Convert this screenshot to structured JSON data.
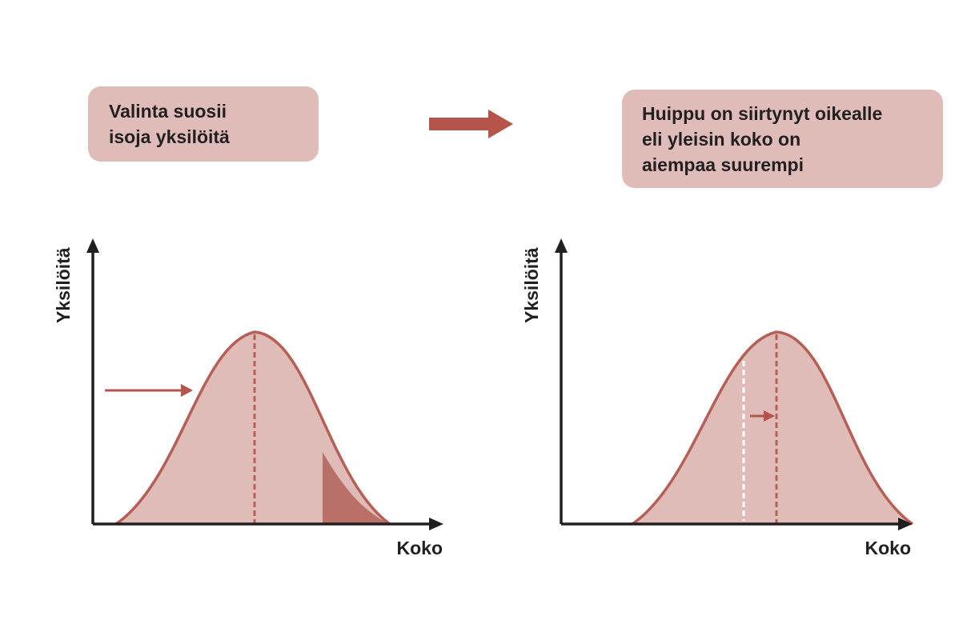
{
  "colors": {
    "curve_fill": "#dfbcb8",
    "curve_stroke": "#b65f56",
    "selected_tail": "#b87068",
    "arrow": "#b5544b",
    "axis": "#231f20",
    "callout_bg": "#dfbcb8"
  },
  "left_panel": {
    "callout_lines": [
      "Valinta suosii",
      "isoja yksilöitä"
    ],
    "y_axis_label": "Yksilöitä",
    "x_axis_label": "Koko"
  },
  "transition_arrow": {
    "icon": "right-arrow-icon"
  },
  "right_panel": {
    "callout_lines": [
      "Huippu on siirtynyt oikealle",
      "eli yleisin koko on",
      "aiempaa suurempi"
    ],
    "y_axis_label": "Yksilöitä",
    "x_axis_label": "Koko"
  }
}
